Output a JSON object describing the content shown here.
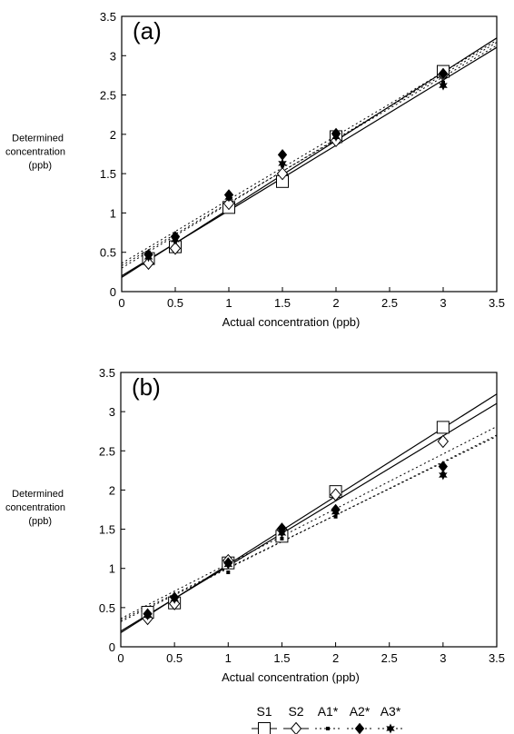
{
  "chart_data": [
    {
      "type": "scatter",
      "panel_label": "(a)",
      "ylabel": [
        "Determined",
        "concentration",
        "(ppb)"
      ],
      "xlabel": "Actual concentration (ppb)",
      "xlim": [
        0,
        3.5
      ],
      "ylim": [
        0,
        3.5
      ],
      "xticks": [
        "0",
        "0.5",
        "1",
        "1.5",
        "2",
        "2.5",
        "3",
        "3.5"
      ],
      "yticks": [
        "0",
        "0.5",
        "1",
        "1.5",
        "2",
        "2.5",
        "3",
        "3.5"
      ],
      "series": [
        {
          "name": "S1",
          "marker": "square",
          "line": "solid",
          "x": [
            0.25,
            0.5,
            1,
            1.5,
            2,
            3
          ],
          "y": [
            0.42,
            0.57,
            1.07,
            1.4,
            1.97,
            2.8
          ],
          "fit": [
            0.18,
            0.87
          ]
        },
        {
          "name": "S2",
          "marker": "diamond",
          "line": "solid",
          "x": [
            0.25,
            0.5,
            1,
            1.5,
            2,
            3
          ],
          "y": [
            0.36,
            0.55,
            1.12,
            1.5,
            1.92,
            2.76
          ],
          "fit": [
            0.2,
            0.83
          ]
        },
        {
          "name": "A1*",
          "marker": "small-square",
          "line": "dotted",
          "x": [
            0.25,
            0.5,
            1,
            1.5,
            2,
            3
          ],
          "y": [
            0.45,
            0.64,
            1.18,
            1.6,
            1.96,
            2.66
          ],
          "fit": [
            0.33,
            0.8
          ]
        },
        {
          "name": "A2*",
          "marker": "filled-diamond",
          "line": "dotted",
          "x": [
            0.25,
            0.5,
            1,
            1.5,
            2,
            3
          ],
          "y": [
            0.47,
            0.7,
            1.23,
            1.74,
            2.01,
            2.77
          ],
          "fit": [
            0.36,
            0.81
          ]
        },
        {
          "name": "A3*",
          "marker": "star",
          "line": "dotted",
          "x": [
            0.25,
            0.5,
            1,
            1.5,
            2,
            3
          ],
          "y": [
            0.44,
            0.66,
            1.2,
            1.63,
            1.97,
            2.62
          ],
          "fit": [
            0.3,
            0.82
          ]
        }
      ]
    },
    {
      "type": "scatter",
      "panel_label": "(b)",
      "ylabel": [
        "Determined",
        "concentration",
        "(ppb)"
      ],
      "xlabel": "Actual concentration (ppb)",
      "xlim": [
        0,
        3.5
      ],
      "ylim": [
        0,
        3.5
      ],
      "xticks": [
        "0",
        "0.5",
        "1",
        "1.5",
        "2",
        "2.5",
        "3",
        "3.5"
      ],
      "yticks": [
        "0",
        "0.5",
        "1",
        "1.5",
        "2",
        "2.5",
        "3",
        "3.5"
      ],
      "series": [
        {
          "name": "S1",
          "marker": "square",
          "line": "solid",
          "x": [
            0.25,
            0.5,
            1,
            1.5,
            2,
            3
          ],
          "y": [
            0.44,
            0.56,
            1.07,
            1.41,
            1.98,
            2.8
          ],
          "fit": [
            0.18,
            0.87
          ]
        },
        {
          "name": "S2",
          "marker": "diamond",
          "line": "solid",
          "x": [
            0.25,
            0.5,
            1,
            1.5,
            2,
            3
          ],
          "y": [
            0.36,
            0.55,
            1.1,
            1.5,
            1.94,
            2.62
          ],
          "fit": [
            0.2,
            0.83
          ]
        },
        {
          "name": "A1*",
          "marker": "small-square",
          "line": "dotted",
          "x": [
            0.25,
            0.5,
            1,
            1.5,
            2,
            3
          ],
          "y": [
            0.38,
            0.6,
            0.95,
            1.38,
            1.66,
            2.21
          ],
          "fit": [
            0.32,
            0.68
          ]
        },
        {
          "name": "A2*",
          "marker": "filled-diamond",
          "line": "dotted",
          "x": [
            0.25,
            0.5,
            1,
            1.5,
            2,
            3
          ],
          "y": [
            0.42,
            0.63,
            1.07,
            1.51,
            1.75,
            2.3
          ],
          "fit": [
            0.36,
            0.7
          ]
        },
        {
          "name": "A3*",
          "marker": "star",
          "line": "dotted",
          "x": [
            0.25,
            0.5,
            1,
            1.5,
            2,
            3
          ],
          "y": [
            0.4,
            0.61,
            1.05,
            1.45,
            1.72,
            2.19
          ],
          "fit": [
            0.34,
            0.67
          ]
        }
      ]
    }
  ],
  "legend": {
    "placement": "bottom-center",
    "items": [
      {
        "label": "S1",
        "marker": "square",
        "line": "solid"
      },
      {
        "label": "S2",
        "marker": "diamond",
        "line": "solid"
      },
      {
        "label": "A1*",
        "marker": "small-square",
        "line": "dotted"
      },
      {
        "label": "A2*",
        "marker": "filled-diamond",
        "line": "dotted"
      },
      {
        "label": "A3*",
        "marker": "star",
        "line": "dotted"
      }
    ]
  }
}
